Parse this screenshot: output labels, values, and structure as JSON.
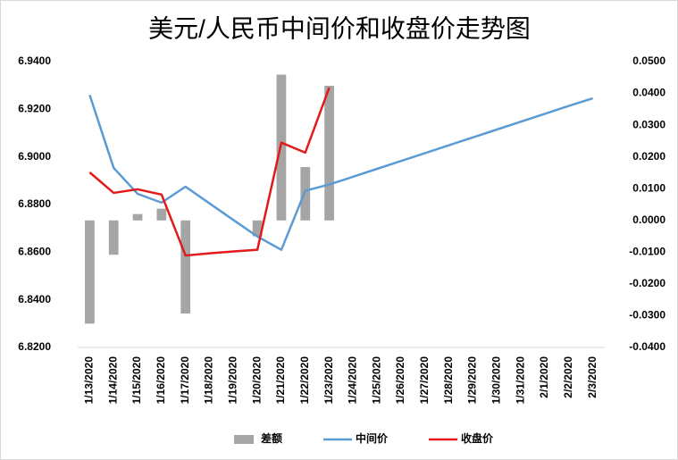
{
  "chart_data": {
    "type": "combo",
    "title": "美元/人民币中间价和收盘价走势图",
    "categories": [
      "1/13/2020",
      "1/14/2020",
      "1/15/2020",
      "1/16/2020",
      "1/17/2020",
      "1/18/2020",
      "1/19/2020",
      "1/20/2020",
      "1/21/2020",
      "1/22/2020",
      "1/23/2020",
      "1/24/2020",
      "1/25/2020",
      "1/26/2020",
      "1/27/2020",
      "1/28/2020",
      "1/29/2020",
      "1/30/2020",
      "1/31/2020",
      "2/1/2020",
      "2/2/2020",
      "2/3/2020"
    ],
    "series": [
      {
        "name": "差额",
        "type": "bar",
        "axis": "y2",
        "color": "#a5a5a5",
        "values": [
          -0.0325,
          -0.0108,
          0.002,
          0.0037,
          -0.0293,
          null,
          null,
          -0.005,
          0.0459,
          0.0168,
          0.0424,
          null,
          null,
          null,
          null,
          null,
          null,
          null,
          null,
          null,
          null,
          null
        ]
      },
      {
        "name": "中间价",
        "type": "line",
        "color": "#5b9bd5",
        "values": [
          6.926,
          6.8954,
          6.8845,
          6.8808,
          6.8875,
          6.8805,
          6.8735,
          6.8666,
          6.861,
          6.8858,
          6.8884,
          6.8917,
          6.895,
          6.8983,
          6.9016,
          6.9049,
          6.9082,
          6.9115,
          6.9148,
          6.9181,
          6.9214,
          6.9246
        ]
      },
      {
        "name": "收盘价",
        "type": "line",
        "color": "#e31a1c",
        "values": [
          6.8935,
          6.8849,
          6.8864,
          6.8842,
          6.8586,
          6.8595,
          6.8603,
          6.861,
          6.906,
          6.9018,
          6.9291,
          null,
          null,
          null,
          null,
          null,
          null,
          null,
          null,
          null,
          null,
          null
        ]
      }
    ],
    "ylim": [
      6.82,
      6.94
    ],
    "yticks": [
      {
        "value": 6.82,
        "label": "6.8200"
      },
      {
        "value": 6.84,
        "label": "6.8400"
      },
      {
        "value": 6.86,
        "label": "6.8600"
      },
      {
        "value": 6.88,
        "label": "6.8800"
      },
      {
        "value": 6.9,
        "label": "6.9000"
      },
      {
        "value": 6.92,
        "label": "6.9200"
      },
      {
        "value": 6.94,
        "label": "6.9400"
      }
    ],
    "y2lim": [
      -0.04,
      0.05
    ],
    "y2ticks": [
      {
        "value": -0.04,
        "label": "-0.0400"
      },
      {
        "value": -0.03,
        "label": "-0.0300"
      },
      {
        "value": -0.02,
        "label": "-0.0200"
      },
      {
        "value": -0.01,
        "label": "-0.0100"
      },
      {
        "value": 0,
        "label": "0.0000"
      },
      {
        "value": 0.01,
        "label": "0.0100"
      },
      {
        "value": 0.02,
        "label": "0.0200"
      },
      {
        "value": 0.03,
        "label": "0.0300"
      },
      {
        "value": 0.04,
        "label": "0.0400"
      },
      {
        "value": 0.05,
        "label": "0.0500"
      }
    ],
    "legend": "bottom"
  }
}
